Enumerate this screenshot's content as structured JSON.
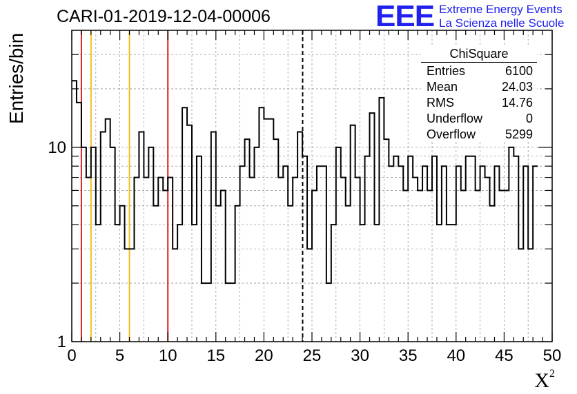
{
  "chart_data": {
    "type": "histogram",
    "title": "CARI-01-2019-12-04-00006",
    "xlabel_base": "X",
    "xlabel_sup": "2",
    "ylabel": "Entries/bin",
    "yscale": "log",
    "xlim": [
      0,
      50
    ],
    "ylim": [
      1,
      40
    ],
    "bin_width": 0.5,
    "x_ticks": [
      "0",
      "5",
      "10",
      "15",
      "20",
      "25",
      "30",
      "35",
      "40",
      "45",
      "50"
    ],
    "y_ticks": [
      "1",
      "10"
    ],
    "counts": [
      22,
      17,
      10,
      7,
      10,
      4,
      12,
      14,
      10,
      4,
      5,
      3,
      3,
      7,
      12,
      7,
      10,
      5,
      7,
      6,
      7,
      3,
      4,
      16,
      13,
      4,
      9,
      2,
      2,
      12,
      5,
      6,
      2,
      2,
      5,
      8,
      11,
      7,
      10,
      16,
      14,
      14,
      11,
      7,
      8,
      5,
      7,
      12,
      9,
      3,
      6,
      8,
      8,
      2,
      4,
      10,
      7,
      5,
      13,
      7,
      4,
      9,
      15,
      4,
      18,
      11,
      8,
      9,
      8,
      6,
      9,
      7,
      6,
      8,
      6,
      9,
      4,
      8,
      4,
      4,
      8,
      6,
      9,
      9,
      6,
      8,
      7,
      5,
      8,
      6,
      6,
      10,
      9,
      3,
      8,
      3,
      8
    ],
    "vlines": [
      {
        "x": 1,
        "color": "#e02020",
        "style": "solid"
      },
      {
        "x": 2,
        "color": "#f0c020",
        "style": "solid"
      },
      {
        "x": 6,
        "color": "#f0c020",
        "style": "solid"
      },
      {
        "x": 10,
        "color": "#e02020",
        "style": "solid"
      },
      {
        "x": 24.03,
        "color": "#000000",
        "style": "dashed"
      }
    ],
    "grid": true,
    "line_color": "#000000",
    "stats": {
      "title": "ChiSquare",
      "rows": [
        {
          "name": "Entries",
          "value": "6100"
        },
        {
          "name": "Mean",
          "value": "24.03"
        },
        {
          "name": "RMS",
          "value": "14.76"
        },
        {
          "name": "Underflow",
          "value": "0"
        },
        {
          "name": "Overflow",
          "value": "5299"
        }
      ]
    }
  },
  "logo": {
    "text": "EEE",
    "line1": "Extreme Energy Events",
    "line2": "La Scienza nelle Scuole",
    "color": "#2121ef"
  }
}
